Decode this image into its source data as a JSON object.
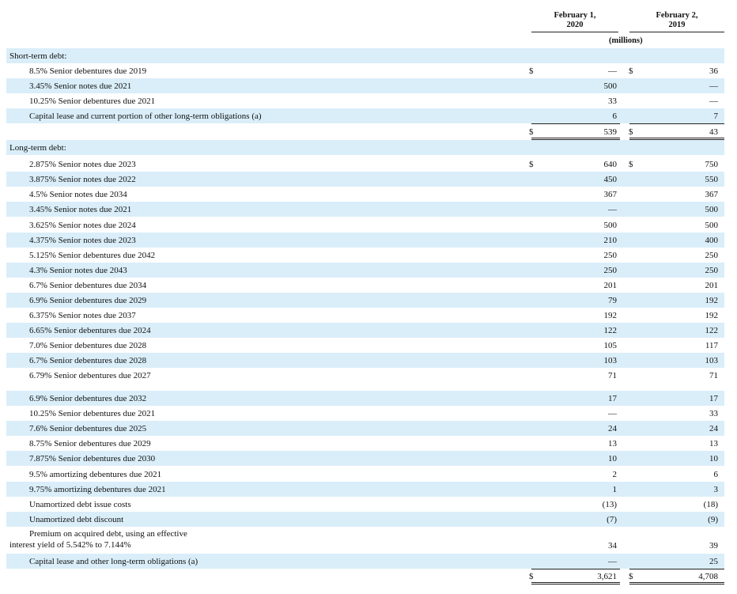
{
  "header": {
    "col1": [
      "February 1,",
      "2020"
    ],
    "col2": [
      "February 2,",
      "2019"
    ],
    "units": "(millions)"
  },
  "rows": [
    {
      "label": "Short-term debt:",
      "indent": 0
    },
    {
      "label": "8.5% Senior debentures due 2019",
      "indent": 1,
      "v1": "—",
      "v2": "36",
      "d1": "$",
      "d2": "$"
    },
    {
      "label": "3.45% Senior notes due 2021",
      "indent": 1,
      "v1": "500",
      "v2": "—"
    },
    {
      "label": "10.25% Senior debentures due 2021",
      "indent": 1,
      "v1": "33",
      "v2": "—"
    },
    {
      "label": "Capital lease and current portion of other long-term obligations (a)",
      "indent": 1,
      "v1": "6",
      "v2": "7",
      "underline": true
    },
    {
      "label": "",
      "indent": 0,
      "v1": "539",
      "v2": "43",
      "d1": "$",
      "d2": "$",
      "doubleline": true
    },
    {
      "label": "Long-term debt:",
      "indent": 0
    },
    {
      "label": "2.875% Senior notes due 2023",
      "indent": 1,
      "v1": "640",
      "v2": "750",
      "d1": "$",
      "d2": "$"
    },
    {
      "label": "3.875% Senior notes due 2022",
      "indent": 1,
      "v1": "450",
      "v2": "550"
    },
    {
      "label": "4.5% Senior notes due 2034",
      "indent": 1,
      "v1": "367",
      "v2": "367"
    },
    {
      "label": "3.45% Senior notes due 2021",
      "indent": 1,
      "v1": "—",
      "v2": "500"
    },
    {
      "label": "3.625% Senior notes due 2024",
      "indent": 1,
      "v1": "500",
      "v2": "500"
    },
    {
      "label": "4.375% Senior notes due 2023",
      "indent": 1,
      "v1": "210",
      "v2": "400"
    },
    {
      "label": "5.125% Senior debentures due 2042",
      "indent": 1,
      "v1": "250",
      "v2": "250"
    },
    {
      "label": "4.3% Senior notes due 2043",
      "indent": 1,
      "v1": "250",
      "v2": "250"
    },
    {
      "label": "6.7% Senior debentures due 2034",
      "indent": 1,
      "v1": "201",
      "v2": "201"
    },
    {
      "label": "6.9% Senior debentures due 2029",
      "indent": 1,
      "v1": "79",
      "v2": "192"
    },
    {
      "label": "6.375% Senior notes due 2037",
      "indent": 1,
      "v1": "192",
      "v2": "192"
    },
    {
      "label": "6.65% Senior debentures due 2024",
      "indent": 1,
      "v1": "122",
      "v2": "122"
    },
    {
      "label": "7.0% Senior debentures due 2028",
      "indent": 1,
      "v1": "105",
      "v2": "117"
    },
    {
      "label": "6.7% Senior debentures due 2028",
      "indent": 1,
      "v1": "103",
      "v2": "103"
    },
    {
      "label": "6.79% Senior debentures due 2027",
      "indent": 1,
      "v1": "71",
      "v2": "71"
    },
    {
      "label": "6.9% Senior debentures due 2032",
      "indent": 1,
      "v1": "17",
      "v2": "17"
    },
    {
      "label": "10.25% Senior debentures due 2021",
      "indent": 1,
      "v1": "—",
      "v2": "33"
    },
    {
      "label": "7.6% Senior debentures due 2025",
      "indent": 1,
      "v1": "24",
      "v2": "24"
    },
    {
      "label": "8.75% Senior debentures due 2029",
      "indent": 1,
      "v1": "13",
      "v2": "13"
    },
    {
      "label": "7.875% Senior debentures due 2030",
      "indent": 1,
      "v1": "10",
      "v2": "10"
    },
    {
      "label": "9.5% amortizing debentures due 2021",
      "indent": 1,
      "v1": "2",
      "v2": "6"
    },
    {
      "label": "9.75% amortizing debentures due 2021",
      "indent": 1,
      "v1": "1",
      "v2": "3"
    },
    {
      "label": "Unamortized debt issue costs",
      "indent": 1,
      "v1": "(13)",
      "v2": "(18)"
    },
    {
      "label": "Unamortized debt discount",
      "indent": 1,
      "v1": "(7)",
      "v2": "(9)"
    },
    {
      "label": "Premium on acquired debt, using an effective",
      "label2": "interest yield of 5.542% to 7.144%",
      "indent": 1,
      "v1": "34",
      "v2": "39"
    },
    {
      "label": "Capital lease and other long-term obligations (a)",
      "indent": 1,
      "v1": "—",
      "v2": "25",
      "underline": true
    },
    {
      "label": "",
      "indent": 0,
      "v1": "3,621",
      "v2": "4,708",
      "d1": "$",
      "d2": "$",
      "doubleline": true
    }
  ]
}
